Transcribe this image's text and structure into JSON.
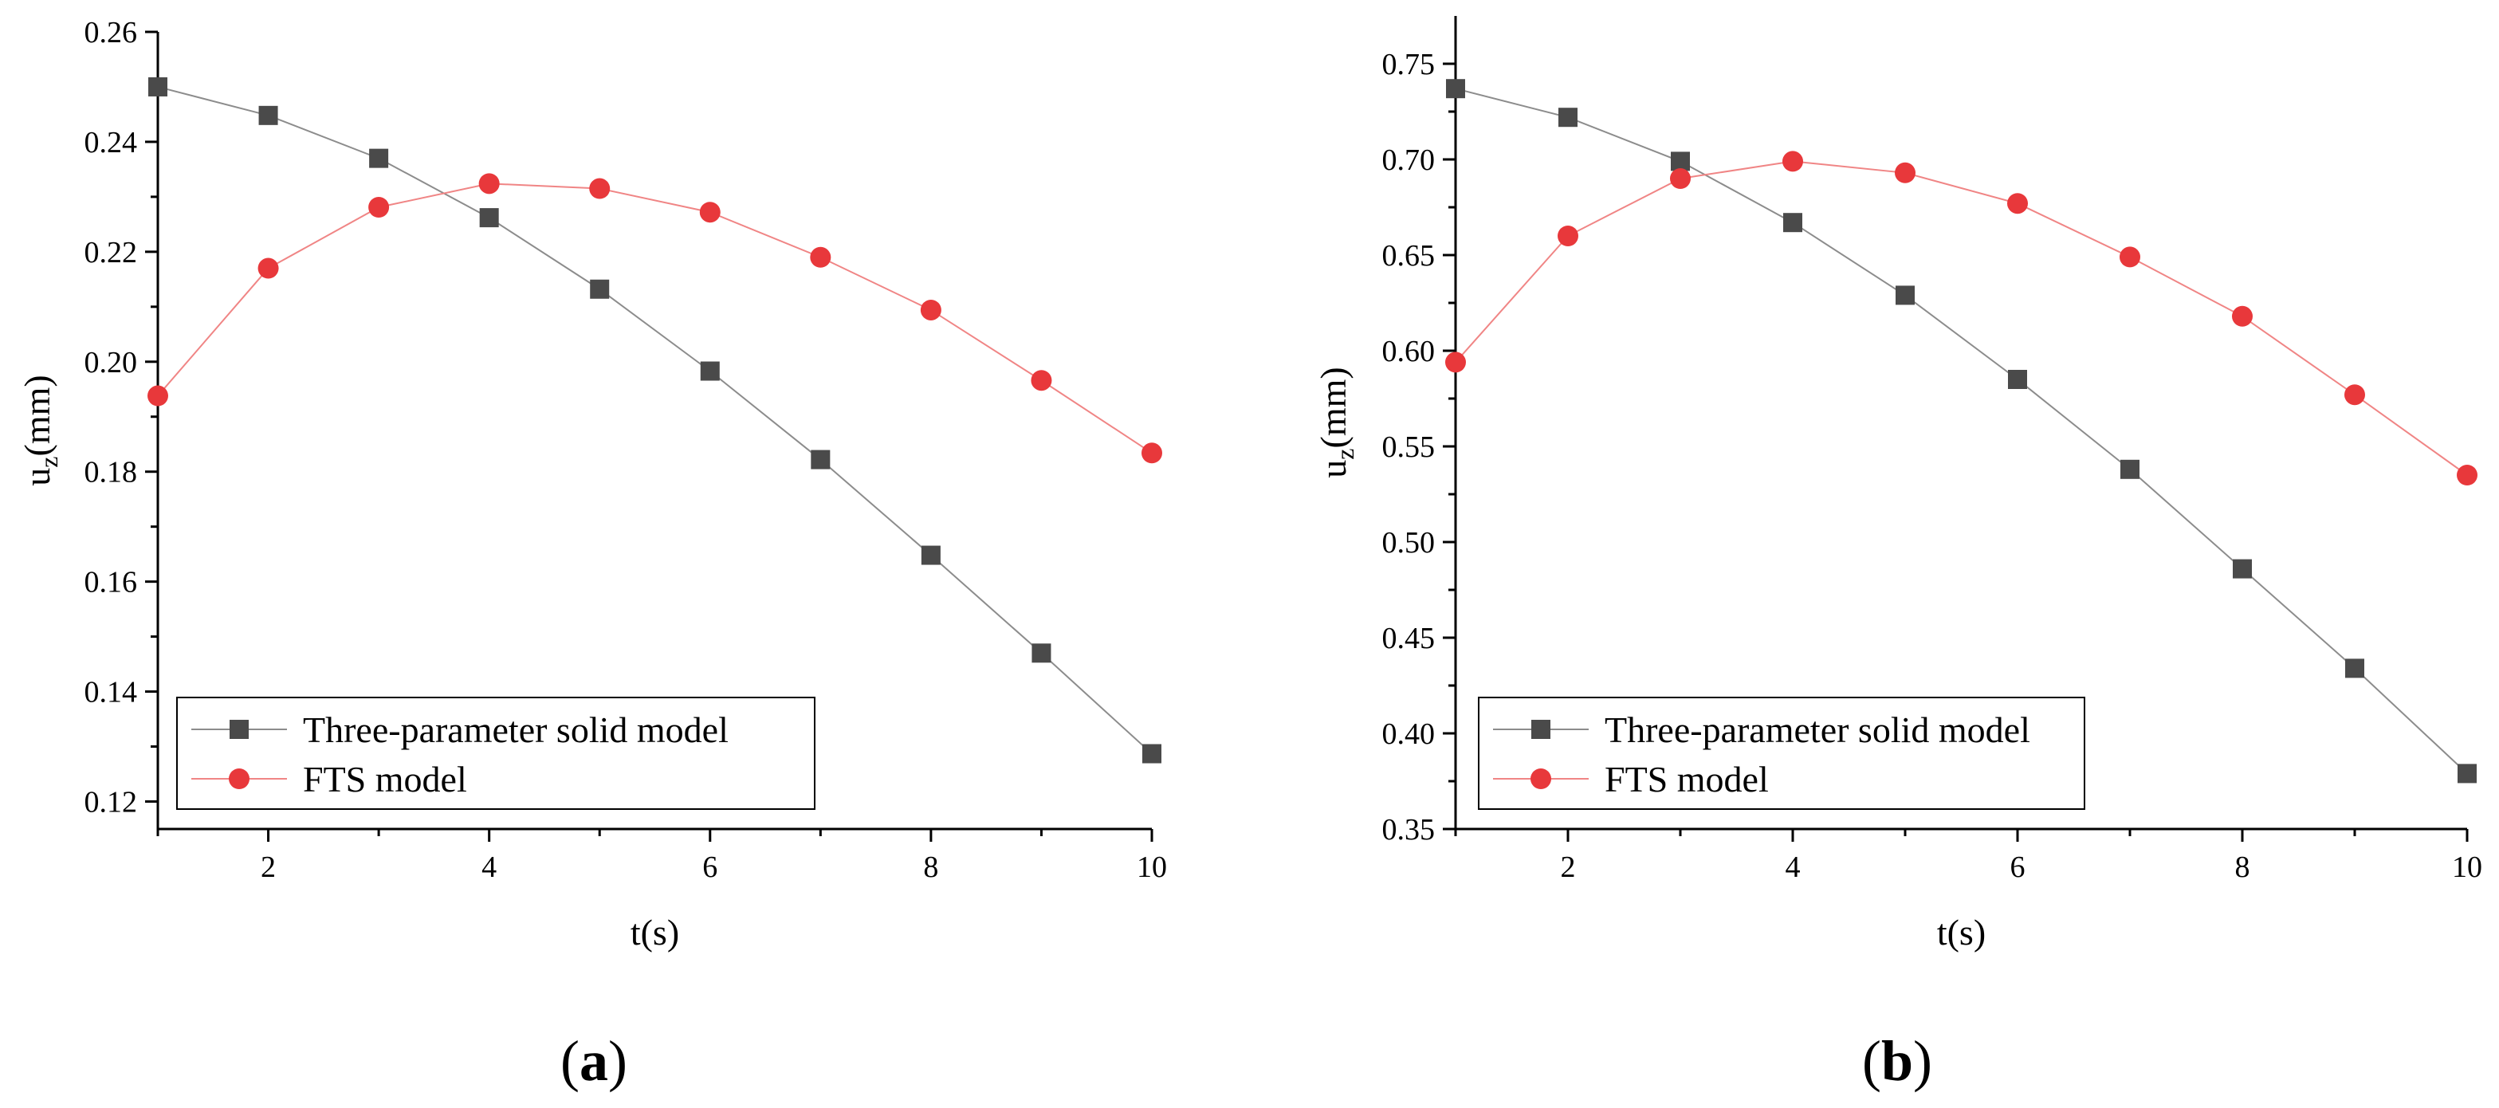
{
  "chart_data": [
    {
      "type": "line",
      "panel_label": "a",
      "title": "",
      "xlabel": "t(s)",
      "ylabel": "u",
      "ylabel_subscript": "z",
      "ylabel_unit": "(mm)",
      "xlim": [
        1,
        10
      ],
      "ylim": [
        0.115,
        0.26
      ],
      "xticks": [
        2,
        4,
        6,
        8,
        10
      ],
      "yticks": [
        0.12,
        0.14,
        0.16,
        0.18,
        0.2,
        0.22,
        0.24,
        0.26
      ],
      "ytick_labels": [
        "0.12",
        "0.14",
        "0.16",
        "0.18",
        "0.20",
        "0.22",
        "0.24",
        "0.26"
      ],
      "grid": false,
      "legend_position": "bottom-left",
      "x": [
        1,
        2,
        3,
        4,
        5,
        6,
        7,
        8,
        9,
        10
      ],
      "series": [
        {
          "name": "Three-parameter solid model",
          "marker": "square",
          "color": "#4a4a4a",
          "line_color": "#8c8c8c",
          "values": [
            0.25,
            0.2448,
            0.237,
            0.2262,
            0.2132,
            0.1983,
            0.1822,
            0.1648,
            0.147,
            0.1287
          ]
        },
        {
          "name": "FTS model",
          "marker": "circle",
          "color": "#e8383b",
          "line_color": "#f08585",
          "values": [
            0.1938,
            0.217,
            0.2281,
            0.2324,
            0.2315,
            0.2272,
            0.219,
            0.2094,
            0.1966,
            0.1834
          ]
        }
      ]
    },
    {
      "type": "line",
      "panel_label": "b",
      "title": "",
      "xlabel": "t(s)",
      "ylabel": "u",
      "ylabel_subscript": "z",
      "ylabel_unit": "(mm)",
      "xlim": [
        1,
        10
      ],
      "ylim": [
        0.35,
        0.775
      ],
      "xticks": [
        2,
        4,
        6,
        8,
        10
      ],
      "yticks": [
        0.35,
        0.4,
        0.45,
        0.5,
        0.55,
        0.6,
        0.65,
        0.7,
        0.75
      ],
      "ytick_labels": [
        "0.35",
        "0.40",
        "0.45",
        "0.50",
        "0.55",
        "0.60",
        "0.65",
        "0.70",
        "0.75"
      ],
      "grid": false,
      "legend_position": "bottom-left",
      "x": [
        1,
        2,
        3,
        4,
        5,
        6,
        7,
        8,
        9,
        10
      ],
      "series": [
        {
          "name": "Three-parameter solid model",
          "marker": "square",
          "color": "#4a4a4a",
          "line_color": "#8c8c8c",
          "values": [
            0.737,
            0.722,
            0.699,
            0.667,
            0.629,
            0.585,
            0.538,
            0.486,
            0.434,
            0.379
          ]
        },
        {
          "name": "FTS model",
          "marker": "circle",
          "color": "#e8383b",
          "line_color": "#f08585",
          "values": [
            0.594,
            0.66,
            0.69,
            0.699,
            0.693,
            0.677,
            0.649,
            0.618,
            0.577,
            0.535
          ]
        }
      ]
    }
  ]
}
